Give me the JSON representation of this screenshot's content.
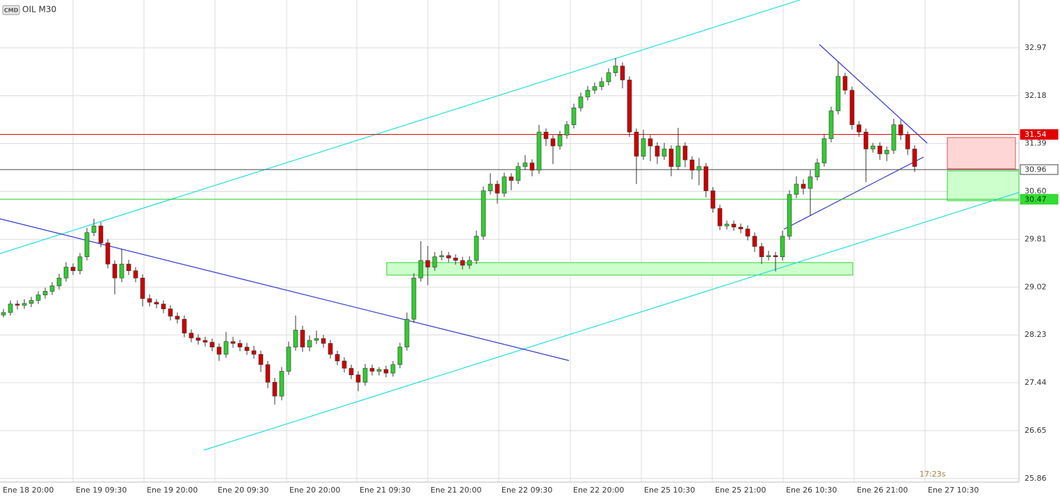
{
  "chart_data": {
    "type": "candlestick",
    "badge": "CMD",
    "title": "OIL M30",
    "countdown": "17:23s",
    "grid": true,
    "up_color": "#33cc33",
    "down_color": "#cc0000",
    "xlim": [
      0,
      146.5
    ],
    "xticks": [
      {
        "value": 0,
        "label": "Ene 18 20:00"
      },
      {
        "value": 10.5,
        "label": "Ene 19 09:30"
      },
      {
        "value": 20.7,
        "label": "Ene 19 20:00"
      },
      {
        "value": 30.9,
        "label": "Ene 20 09:30"
      },
      {
        "value": 41.2,
        "label": "Ene 20 20:00"
      },
      {
        "value": 51.3,
        "label": "Ene 21 09:30"
      },
      {
        "value": 61.5,
        "label": "Ene 21 20:00"
      },
      {
        "value": 71.7,
        "label": "Ene 22 09:30"
      },
      {
        "value": 82,
        "label": "Ene 22 20:00"
      },
      {
        "value": 92.2,
        "label": "Ene 25 10:30"
      },
      {
        "value": 102.4,
        "label": "Ene 25 21:00"
      },
      {
        "value": 112.6,
        "label": "Ene 26 10:30"
      },
      {
        "value": 122.8,
        "label": "Ene 26 21:00"
      },
      {
        "value": 133,
        "label": "Ene 27 10:30"
      }
    ],
    "ylim": [
      25.8,
      33.76
    ],
    "yticks": [
      32.97,
      32.18,
      31.39,
      {
        "value": 30.6,
        "label": "30.60"
      },
      29.81,
      29.02,
      28.23,
      27.44,
      26.65,
      25.86
    ],
    "levels": [
      {
        "value": 31.54,
        "line_color": "#e00000",
        "box_fill": "#e00000",
        "text_color": "#ffffff"
      },
      {
        "value": 30.96,
        "line_color": "#444444",
        "box_fill": "#ffffff",
        "text_color": "#333333"
      },
      {
        "value": 30.47,
        "line_color": "#22cc22",
        "box_fill": "#33dd33",
        "text_color": "#003300"
      }
    ],
    "ohlc": [
      [
        28.56,
        28.66,
        28.52,
        28.6
      ],
      [
        28.6,
        28.8,
        28.55,
        28.74
      ],
      [
        28.74,
        28.8,
        28.65,
        28.72
      ],
      [
        28.72,
        28.82,
        28.66,
        28.75
      ],
      [
        28.75,
        28.86,
        28.69,
        28.8
      ],
      [
        28.8,
        28.95,
        28.74,
        28.89
      ],
      [
        28.89,
        29.01,
        28.83,
        28.95
      ],
      [
        28.95,
        29.1,
        28.89,
        29.04
      ],
      [
        29.04,
        29.24,
        28.98,
        29.17
      ],
      [
        29.17,
        29.43,
        29.11,
        29.35
      ],
      [
        29.35,
        29.41,
        29.22,
        29.29
      ],
      [
        29.29,
        29.58,
        29.23,
        29.52
      ],
      [
        29.52,
        30.0,
        29.46,
        29.92
      ],
      [
        29.92,
        30.15,
        29.86,
        30.03
      ],
      [
        30.03,
        30.09,
        29.68,
        29.75
      ],
      [
        29.75,
        29.81,
        29.33,
        29.4
      ],
      [
        29.4,
        29.46,
        28.9,
        29.17
      ],
      [
        29.17,
        29.65,
        29.1,
        29.4
      ],
      [
        29.4,
        29.47,
        29.22,
        29.29
      ],
      [
        29.29,
        29.35,
        29.1,
        29.17
      ],
      [
        29.17,
        29.23,
        28.7,
        28.83
      ],
      [
        28.83,
        28.9,
        28.7,
        28.77
      ],
      [
        28.77,
        28.82,
        28.67,
        28.74
      ],
      [
        28.74,
        28.8,
        28.59,
        28.66
      ],
      [
        28.66,
        28.72,
        28.47,
        28.54
      ],
      [
        28.54,
        28.6,
        28.42,
        28.49
      ],
      [
        28.49,
        28.55,
        28.19,
        28.26
      ],
      [
        28.26,
        28.32,
        28.11,
        28.18
      ],
      [
        28.18,
        28.24,
        28.07,
        28.14
      ],
      [
        28.14,
        28.2,
        28.04,
        28.11
      ],
      [
        28.11,
        28.17,
        27.96,
        28.03
      ],
      [
        28.03,
        28.09,
        27.8,
        27.91
      ],
      [
        27.91,
        28.28,
        27.85,
        28.12
      ],
      [
        28.12,
        28.2,
        28.02,
        28.09
      ],
      [
        28.09,
        28.15,
        27.96,
        28.03
      ],
      [
        28.03,
        28.1,
        27.9,
        27.97
      ],
      [
        27.97,
        28.05,
        27.84,
        27.91
      ],
      [
        27.91,
        27.97,
        27.62,
        27.74
      ],
      [
        27.74,
        27.8,
        27.35,
        27.45
      ],
      [
        27.45,
        27.52,
        27.08,
        27.22
      ],
      [
        27.22,
        27.7,
        27.15,
        27.63
      ],
      [
        27.63,
        28.12,
        27.57,
        28.03
      ],
      [
        28.03,
        28.55,
        27.97,
        28.31
      ],
      [
        28.31,
        28.38,
        27.95,
        28.03
      ],
      [
        28.03,
        28.22,
        27.96,
        28.14
      ],
      [
        28.14,
        28.3,
        28.08,
        28.17
      ],
      [
        28.17,
        28.23,
        28.02,
        28.09
      ],
      [
        28.09,
        28.15,
        27.84,
        27.91
      ],
      [
        27.91,
        27.97,
        27.73,
        27.8
      ],
      [
        27.8,
        27.86,
        27.61,
        27.68
      ],
      [
        27.68,
        27.74,
        27.5,
        27.57
      ],
      [
        27.57,
        27.63,
        27.3,
        27.45
      ],
      [
        27.45,
        27.75,
        27.39,
        27.68
      ],
      [
        27.68,
        27.74,
        27.56,
        27.63
      ],
      [
        27.63,
        27.7,
        27.56,
        27.66
      ],
      [
        27.66,
        27.72,
        27.53,
        27.6
      ],
      [
        27.6,
        27.8,
        27.54,
        27.74
      ],
      [
        27.74,
        28.1,
        27.68,
        28.03
      ],
      [
        28.03,
        28.6,
        27.97,
        28.49
      ],
      [
        28.49,
        29.25,
        28.43,
        29.17
      ],
      [
        29.17,
        29.78,
        29.11,
        29.46
      ],
      [
        29.46,
        29.7,
        29.05,
        29.35
      ],
      [
        29.35,
        29.6,
        29.29,
        29.52
      ],
      [
        29.52,
        29.62,
        29.46,
        29.54
      ],
      [
        29.54,
        29.6,
        29.43,
        29.5
      ],
      [
        29.5,
        29.56,
        29.39,
        29.46
      ],
      [
        29.46,
        29.52,
        29.31,
        29.38
      ],
      [
        29.38,
        29.53,
        29.32,
        29.46
      ],
      [
        29.46,
        29.95,
        29.4,
        29.86
      ],
      [
        29.86,
        30.68,
        29.8,
        30.61
      ],
      [
        30.61,
        30.9,
        30.55,
        30.72
      ],
      [
        30.72,
        30.78,
        30.4,
        30.57
      ],
      [
        30.57,
        30.91,
        30.51,
        30.84
      ],
      [
        30.84,
        30.9,
        30.62,
        30.78
      ],
      [
        30.78,
        31.08,
        30.72,
        31.01
      ],
      [
        31.01,
        31.2,
        30.95,
        31.07
      ],
      [
        31.07,
        31.13,
        30.85,
        30.95
      ],
      [
        30.95,
        31.7,
        30.89,
        31.58
      ],
      [
        31.58,
        31.64,
        31.35,
        31.47
      ],
      [
        31.47,
        31.53,
        31.05,
        31.35
      ],
      [
        31.35,
        31.6,
        31.29,
        31.53
      ],
      [
        31.53,
        31.76,
        31.47,
        31.7
      ],
      [
        31.7,
        32.05,
        31.64,
        31.98
      ],
      [
        31.98,
        32.23,
        31.92,
        32.16
      ],
      [
        32.16,
        32.34,
        32.1,
        32.27
      ],
      [
        32.27,
        32.4,
        32.21,
        32.33
      ],
      [
        32.33,
        32.48,
        32.27,
        32.41
      ],
      [
        32.41,
        32.63,
        32.35,
        32.56
      ],
      [
        32.56,
        32.8,
        32.5,
        32.67
      ],
      [
        32.67,
        32.73,
        32.3,
        32.44
      ],
      [
        32.44,
        32.5,
        31.5,
        31.58
      ],
      [
        31.58,
        31.64,
        30.72,
        31.18
      ],
      [
        31.18,
        31.62,
        31.12,
        31.47
      ],
      [
        31.47,
        31.53,
        31.1,
        31.35
      ],
      [
        31.35,
        31.41,
        31.05,
        31.18
      ],
      [
        31.18,
        31.4,
        31.12,
        31.3
      ],
      [
        31.3,
        31.36,
        30.85,
        31.01
      ],
      [
        31.01,
        31.65,
        30.95,
        31.35
      ],
      [
        31.35,
        31.41,
        31.0,
        31.12
      ],
      [
        31.12,
        31.18,
        30.8,
        30.95
      ],
      [
        30.95,
        31.15,
        30.7,
        31.01
      ],
      [
        31.01,
        31.07,
        30.5,
        30.61
      ],
      [
        30.61,
        30.67,
        30.25,
        30.32
      ],
      [
        30.32,
        30.38,
        29.96,
        30.03
      ],
      [
        30.03,
        30.12,
        29.97,
        30.06
      ],
      [
        30.06,
        30.12,
        29.95,
        30.01
      ],
      [
        30.01,
        30.07,
        29.91,
        29.98
      ],
      [
        29.98,
        30.04,
        29.79,
        29.86
      ],
      [
        29.86,
        29.92,
        29.6,
        29.69
      ],
      [
        29.69,
        29.75,
        29.4,
        29.52
      ],
      [
        29.52,
        29.62,
        29.46,
        29.54
      ],
      [
        29.54,
        29.6,
        29.28,
        29.52
      ],
      [
        29.52,
        29.95,
        29.46,
        29.86
      ],
      [
        29.86,
        30.62,
        29.8,
        30.55
      ],
      [
        30.55,
        30.85,
        30.49,
        30.72
      ],
      [
        30.72,
        30.8,
        30.55,
        30.65
      ],
      [
        30.65,
        30.95,
        30.2,
        30.84
      ],
      [
        30.84,
        31.14,
        30.78,
        31.07
      ],
      [
        31.07,
        31.55,
        31.01,
        31.47
      ],
      [
        31.47,
        32.0,
        31.41,
        31.93
      ],
      [
        31.93,
        32.75,
        31.87,
        32.5
      ],
      [
        32.5,
        32.56,
        32.2,
        32.27
      ],
      [
        32.27,
        32.33,
        31.62,
        31.7
      ],
      [
        31.7,
        31.76,
        31.5,
        31.58
      ],
      [
        31.58,
        31.64,
        30.75,
        31.3
      ],
      [
        31.3,
        31.4,
        31.24,
        31.35
      ],
      [
        31.35,
        31.41,
        31.12,
        31.22
      ],
      [
        31.22,
        31.34,
        31.1,
        31.28
      ],
      [
        31.28,
        31.8,
        31.22,
        31.7
      ],
      [
        31.7,
        31.78,
        31.45,
        31.53
      ],
      [
        31.53,
        31.59,
        31.2,
        31.3
      ],
      [
        31.3,
        31.36,
        30.92,
        31.01
      ]
    ]
  }
}
